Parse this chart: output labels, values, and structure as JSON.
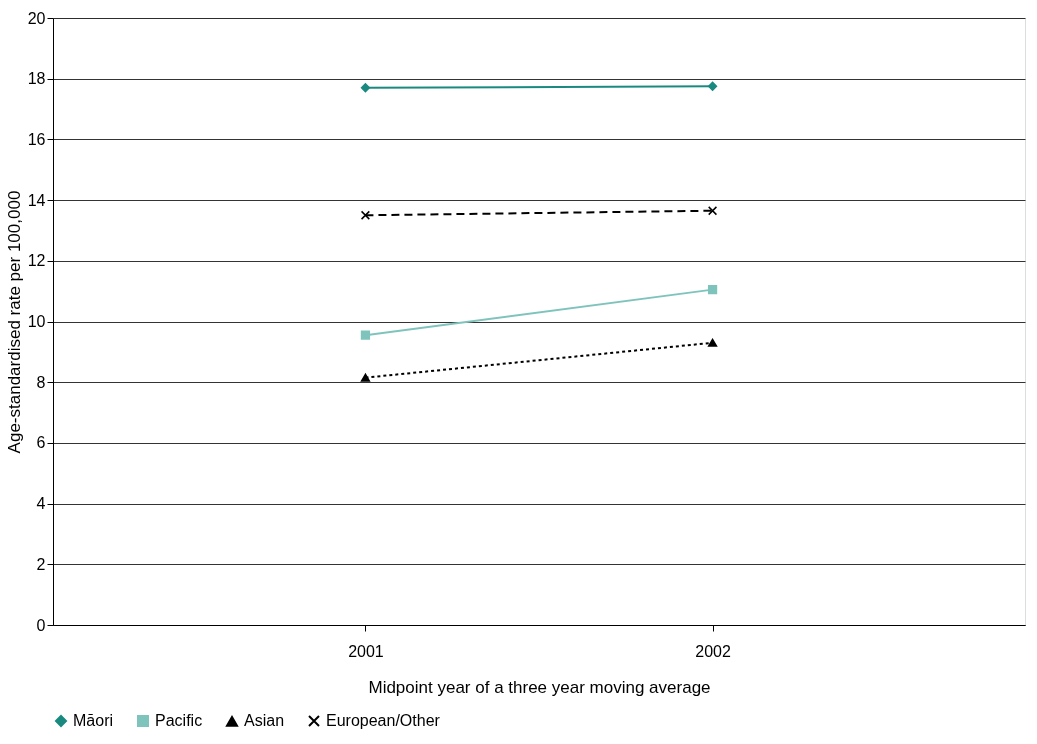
{
  "chart_data": {
    "type": "line",
    "xlabel": "Midpoint year of a three year moving average",
    "ylabel": "Age-standardised rate per 100,000",
    "categories": [
      "2001",
      "2002"
    ],
    "series": [
      {
        "name": "Māori",
        "color": "#1a8a80",
        "values": [
          17.7,
          17.75
        ],
        "marker": "diamond",
        "line_style": "solid"
      },
      {
        "name": "Pacific",
        "color": "#7fc4bc",
        "values": [
          9.55,
          11.05
        ],
        "marker": "square",
        "line_style": "solid"
      },
      {
        "name": "Asian",
        "color": "#000000",
        "values": [
          8.15,
          9.3
        ],
        "marker": "triangle",
        "line_style": "dotted"
      },
      {
        "name": "European/Other",
        "color": "#000000",
        "values": [
          13.5,
          13.65
        ],
        "marker": "cross",
        "line_style": "dashed"
      }
    ],
    "ylim": [
      0,
      20
    ],
    "yticks": [
      0,
      2,
      4,
      6,
      8,
      10,
      12,
      14,
      16,
      18,
      20
    ],
    "grid": "y",
    "legend": "bottom"
  }
}
